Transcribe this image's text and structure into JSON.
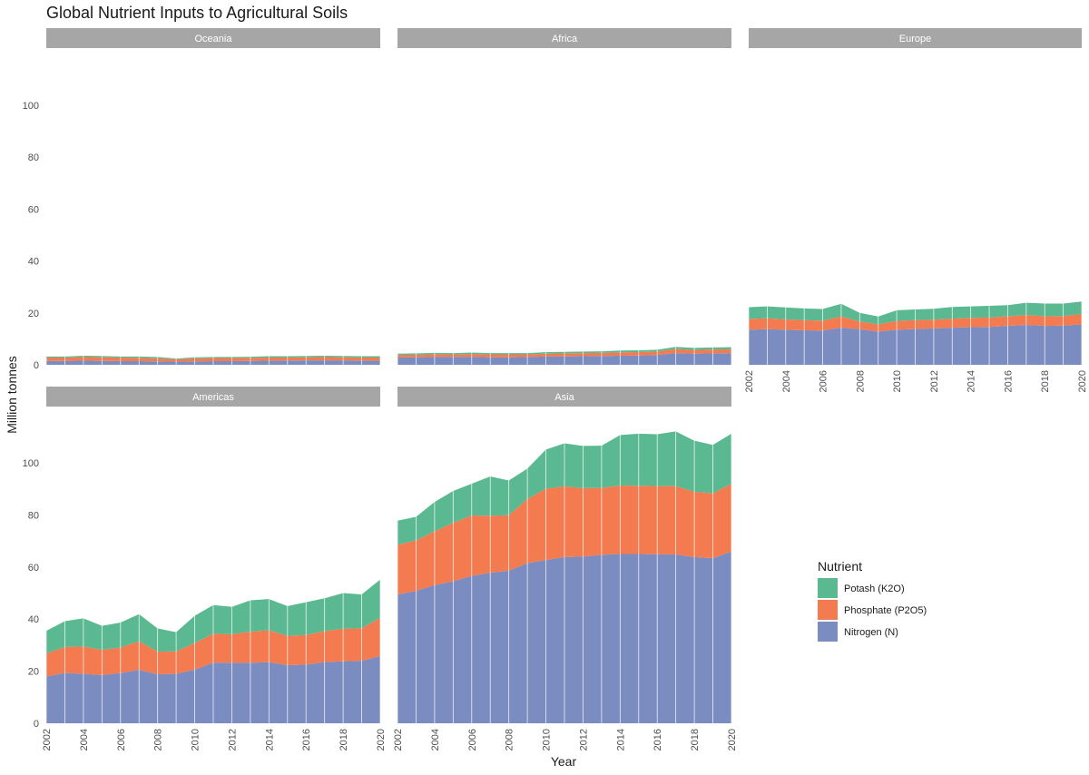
{
  "chart_data": {
    "type": "area",
    "title": "Global Nutrient Inputs to Agricultural Soils",
    "xlabel": "Year",
    "ylabel": "Million tonnes",
    "ylim": [
      0,
      115
    ],
    "y_ticks": [
      0,
      20,
      40,
      60,
      80,
      100
    ],
    "x_ticks": [
      2002,
      2004,
      2006,
      2008,
      2010,
      2012,
      2014,
      2016,
      2018,
      2020
    ],
    "years": [
      2002,
      2003,
      2004,
      2005,
      2006,
      2007,
      2008,
      2009,
      2010,
      2011,
      2012,
      2013,
      2014,
      2015,
      2016,
      2017,
      2018,
      2019,
      2020
    ],
    "legend": {
      "title": "Nutrient",
      "entries": [
        {
          "name": "Potash (K2O)",
          "color": "#5bb991"
        },
        {
          "name": "Phosphate (P2O5)",
          "color": "#f47a4f"
        },
        {
          "name": "Nitrogen (N)",
          "color": "#7b8cc0"
        }
      ]
    },
    "panels": [
      {
        "name": "Oceania",
        "series": [
          {
            "name": "Nitrogen (N)",
            "values": [
              1.5,
              1.5,
              1.6,
              1.5,
              1.4,
              1.4,
              1.3,
              1.2,
              1.3,
              1.4,
              1.4,
              1.5,
              1.6,
              1.6,
              1.7,
              1.7,
              1.7,
              1.6,
              1.6
            ]
          },
          {
            "name": "Phosphate (P2O5)",
            "values": [
              1.3,
              1.3,
              1.4,
              1.4,
              1.4,
              1.3,
              1.2,
              0.9,
              1.2,
              1.2,
              1.2,
              1.2,
              1.2,
              1.2,
              1.2,
              1.3,
              1.2,
              1.2,
              1.2
            ]
          },
          {
            "name": "Potash (K2O)",
            "values": [
              0.4,
              0.4,
              0.5,
              0.5,
              0.4,
              0.5,
              0.5,
              0.3,
              0.4,
              0.4,
              0.4,
              0.4,
              0.5,
              0.5,
              0.5,
              0.5,
              0.5,
              0.5,
              0.5
            ]
          }
        ]
      },
      {
        "name": "Africa",
        "series": [
          {
            "name": "Nitrogen (N)",
            "values": [
              2.8,
              2.9,
              3.0,
              3.0,
              3.1,
              2.9,
              2.9,
              3.0,
              3.2,
              3.2,
              3.3,
              3.4,
              3.5,
              3.6,
              3.8,
              4.5,
              4.3,
              4.4,
              4.5
            ]
          },
          {
            "name": "Phosphate (P2O5)",
            "values": [
              1.0,
              1.0,
              1.1,
              1.0,
              1.1,
              1.1,
              1.1,
              1.0,
              1.1,
              1.2,
              1.2,
              1.2,
              1.3,
              1.3,
              1.3,
              1.6,
              1.4,
              1.5,
              1.5
            ]
          },
          {
            "name": "Potash (K2O)",
            "values": [
              0.5,
              0.5,
              0.5,
              0.5,
              0.5,
              0.5,
              0.5,
              0.5,
              0.6,
              0.6,
              0.6,
              0.6,
              0.7,
              0.7,
              0.7,
              0.8,
              0.8,
              0.8,
              0.8
            ]
          }
        ]
      },
      {
        "name": "Europe",
        "series": [
          {
            "name": "Nitrogen (N)",
            "values": [
              13.5,
              13.7,
              13.5,
              13.3,
              13.2,
              14.3,
              13.7,
              12.8,
              13.5,
              13.8,
              14.0,
              14.3,
              14.5,
              14.6,
              15.0,
              15.4,
              15.0,
              15.1,
              15.6
            ]
          },
          {
            "name": "Phosphate (P2O5)",
            "values": [
              4.2,
              4.2,
              4.0,
              3.9,
              3.8,
              4.3,
              3.0,
              2.8,
              3.4,
              3.4,
              3.4,
              3.5,
              3.6,
              3.6,
              3.7,
              3.8,
              3.7,
              3.7,
              4.0
            ]
          },
          {
            "name": "Potash (K2O)",
            "values": [
              4.5,
              4.6,
              4.6,
              4.5,
              4.5,
              4.9,
              3.3,
              3.0,
              4.1,
              4.1,
              4.2,
              4.5,
              4.4,
              4.5,
              4.3,
              4.7,
              4.9,
              4.8,
              4.8
            ]
          }
        ]
      },
      {
        "name": "Americas",
        "series": [
          {
            "name": "Nitrogen (N)",
            "values": [
              18.0,
              19.3,
              19.0,
              18.5,
              19.3,
              20.5,
              18.8,
              19.0,
              20.6,
              23.3,
              23.2,
              23.2,
              23.5,
              22.3,
              22.5,
              23.5,
              23.8,
              24.0,
              25.8
            ]
          },
          {
            "name": "Phosphate (P2O5)",
            "values": [
              8.8,
              10.0,
              10.5,
              9.7,
              9.8,
              11.0,
              8.7,
              8.6,
              10.2,
              11.1,
              11.0,
              12.0,
              12.2,
              11.3,
              11.4,
              11.9,
              12.5,
              12.5,
              14.7
            ]
          },
          {
            "name": "Potash (K2O)",
            "values": [
              8.7,
              9.9,
              10.8,
              9.2,
              9.6,
              10.4,
              8.9,
              7.4,
              10.5,
              11.0,
              10.5,
              12.0,
              12.0,
              11.4,
              12.6,
              12.6,
              13.7,
              13.0,
              14.7
            ]
          }
        ]
      },
      {
        "name": "Asia",
        "series": [
          {
            "name": "Nitrogen (N)",
            "values": [
              49.5,
              50.8,
              53.0,
              54.5,
              56.6,
              57.8,
              58.6,
              61.5,
              62.7,
              63.8,
              64.0,
              64.7,
              65.0,
              65.0,
              64.9,
              64.8,
              63.8,
              63.4,
              66.0
            ]
          },
          {
            "name": "Phosphate (P2O5)",
            "values": [
              19.0,
              19.4,
              20.7,
              22.5,
              23.2,
              21.9,
              21.3,
              24.6,
              27.4,
              27.2,
              26.3,
              25.7,
              26.3,
              26.2,
              26.2,
              26.3,
              25.1,
              24.9,
              26.0
            ]
          },
          {
            "name": "Potash (K2O)",
            "values": [
              9.3,
              9.1,
              11.3,
              12.2,
              12.2,
              15.1,
              13.3,
              11.7,
              15.0,
              16.5,
              16.2,
              16.2,
              19.4,
              20.0,
              19.9,
              21.0,
              19.6,
              18.6,
              19.2
            ]
          }
        ]
      }
    ]
  }
}
